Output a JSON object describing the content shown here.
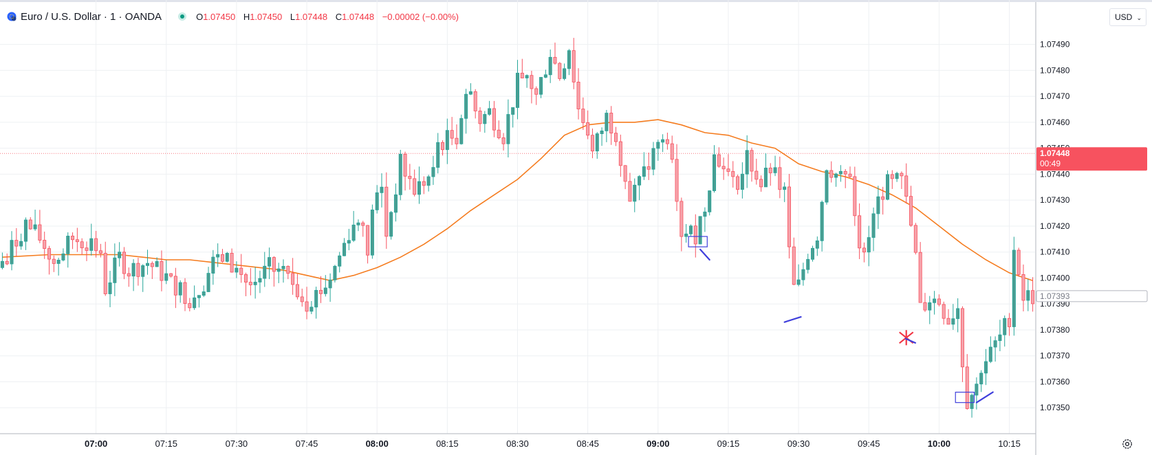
{
  "header": {
    "symbol": "Euro / U.S. Dollar · 1 · OANDA",
    "o_label": "O",
    "o_value": "1.07450",
    "h_label": "H",
    "h_value": "1.07450",
    "l_label": "L",
    "l_value": "1.07448",
    "c_label": "C",
    "c_value": "1.07448",
    "change": "−0.00002 (−0.00%)"
  },
  "currency_select": {
    "value": "USD"
  },
  "colors": {
    "up": "#26a69a",
    "down": "#f7525f",
    "up_fill": "#4a9d92",
    "down_fill": "#f6a2aa",
    "ma": "#f57c1f",
    "grid": "#eef0f3",
    "price_label": "#f7525f",
    "annotation": "#3f3fdc",
    "marker": "#f23645"
  },
  "chart_data": {
    "type": "candlestick",
    "title": "Euro / U.S. Dollar · 1 · OANDA",
    "y_ticks": [
      "1.07490",
      "1.07480",
      "1.07470",
      "1.07460",
      "1.07450",
      "1.07440",
      "1.07430",
      "1.07420",
      "1.07410",
      "1.07400",
      "1.07390",
      "1.07380",
      "1.07370",
      "1.07360",
      "1.07350"
    ],
    "x_ticks": [
      {
        "label": "07:00",
        "bold": true,
        "minute": 0
      },
      {
        "label": "07:15",
        "bold": false,
        "minute": 15
      },
      {
        "label": "07:30",
        "bold": false,
        "minute": 30
      },
      {
        "label": "07:45",
        "bold": false,
        "minute": 45
      },
      {
        "label": "08:00",
        "bold": true,
        "minute": 60
      },
      {
        "label": "08:15",
        "bold": false,
        "minute": 75
      },
      {
        "label": "08:30",
        "bold": false,
        "minute": 90
      },
      {
        "label": "08:45",
        "bold": false,
        "minute": 105
      },
      {
        "label": "09:00",
        "bold": true,
        "minute": 120
      },
      {
        "label": "09:15",
        "bold": false,
        "minute": 135
      },
      {
        "label": "09:30",
        "bold": false,
        "minute": 150
      },
      {
        "label": "09:45",
        "bold": false,
        "minute": 165
      },
      {
        "label": "10:00",
        "bold": true,
        "minute": 180
      },
      {
        "label": "10:15",
        "bold": false,
        "minute": 195
      }
    ],
    "y_range": [
      1.0734,
      1.07505
    ],
    "x_range_minutes": [
      -20.5,
      200.5
    ],
    "current_price": {
      "value": 1.07448,
      "label": "1.07448",
      "countdown": "00:49"
    },
    "secondary_price": {
      "value": 1.07393,
      "label": "1.07393"
    },
    "moving_average": [
      [
        -20,
        1.07408
      ],
      [
        -10,
        1.07409
      ],
      [
        0,
        1.07409
      ],
      [
        5,
        1.07409
      ],
      [
        10,
        1.07408
      ],
      [
        15,
        1.07407
      ],
      [
        20,
        1.07407
      ],
      [
        25,
        1.07406
      ],
      [
        30,
        1.07405
      ],
      [
        35,
        1.07404
      ],
      [
        40,
        1.07403
      ],
      [
        45,
        1.07401
      ],
      [
        50,
        1.07399
      ],
      [
        55,
        1.07401
      ],
      [
        60,
        1.07404
      ],
      [
        65,
        1.07408
      ],
      [
        70,
        1.07413
      ],
      [
        75,
        1.07419
      ],
      [
        80,
        1.07426
      ],
      [
        85,
        1.07432
      ],
      [
        90,
        1.07438
      ],
      [
        95,
        1.07446
      ],
      [
        100,
        1.07455
      ],
      [
        105,
        1.07459
      ],
      [
        110,
        1.0746
      ],
      [
        115,
        1.0746
      ],
      [
        120,
        1.07461
      ],
      [
        125,
        1.07459
      ],
      [
        130,
        1.07456
      ],
      [
        135,
        1.07455
      ],
      [
        140,
        1.07452
      ],
      [
        145,
        1.0745
      ],
      [
        150,
        1.07444
      ],
      [
        155,
        1.07441
      ],
      [
        160,
        1.07439
      ],
      [
        165,
        1.07436
      ],
      [
        170,
        1.07432
      ],
      [
        175,
        1.07427
      ],
      [
        180,
        1.0742
      ],
      [
        185,
        1.07413
      ],
      [
        190,
        1.07407
      ],
      [
        195,
        1.07402
      ],
      [
        200,
        1.07399
      ]
    ],
    "anchors": [
      [
        -20,
        1.07404
      ],
      [
        -16,
        1.07414
      ],
      [
        -14,
        1.07421
      ],
      [
        -11,
        1.07415
      ],
      [
        -8,
        1.07406
      ],
      [
        -4,
        1.07415
      ],
      [
        0,
        1.07414
      ],
      [
        2,
        1.07408
      ],
      [
        3,
        1.07396
      ],
      [
        6,
        1.07408
      ],
      [
        8,
        1.07403
      ],
      [
        12,
        1.07406
      ],
      [
        17,
        1.07399
      ],
      [
        21,
        1.07392
      ],
      [
        24,
        1.07398
      ],
      [
        27,
        1.0741
      ],
      [
        31,
        1.07403
      ],
      [
        34,
        1.07397
      ],
      [
        38,
        1.07404
      ],
      [
        42,
        1.074
      ],
      [
        46,
        1.07391
      ],
      [
        50,
        1.07397
      ],
      [
        52,
        1.07404
      ],
      [
        55,
        1.07418
      ],
      [
        58,
        1.07424
      ],
      [
        59,
        1.07406
      ],
      [
        60,
        1.07428
      ],
      [
        62,
        1.07434
      ],
      [
        63,
        1.07417
      ],
      [
        66,
        1.07444
      ],
      [
        69,
        1.07434
      ],
      [
        73,
        1.0744
      ],
      [
        74,
        1.07452
      ],
      [
        78,
        1.07455
      ],
      [
        80,
        1.07472
      ],
      [
        83,
        1.07461
      ],
      [
        85,
        1.07464
      ],
      [
        88,
        1.07455
      ],
      [
        91,
        1.07475
      ],
      [
        93,
        1.07478
      ],
      [
        95,
        1.0747
      ],
      [
        98,
        1.07487
      ],
      [
        100,
        1.07478
      ],
      [
        102,
        1.07489
      ],
      [
        104,
        1.07465
      ],
      [
        106,
        1.07457
      ],
      [
        107,
        1.07448
      ],
      [
        110,
        1.07462
      ],
      [
        112,
        1.07456
      ],
      [
        115,
        1.0743
      ],
      [
        117,
        1.07437
      ],
      [
        119,
        1.07444
      ],
      [
        121,
        1.0745
      ],
      [
        123,
        1.07455
      ],
      [
        124,
        1.07449
      ],
      [
        126,
        1.07418
      ],
      [
        129,
        1.07417
      ],
      [
        131,
        1.07428
      ],
      [
        133,
        1.07447
      ],
      [
        135,
        1.07443
      ],
      [
        137,
        1.07436
      ],
      [
        139,
        1.0744
      ],
      [
        140,
        1.07447
      ],
      [
        143,
        1.07436
      ],
      [
        145,
        1.07442
      ],
      [
        148,
        1.07432
      ],
      [
        149,
        1.0741
      ],
      [
        150,
        1.07396
      ],
      [
        151,
        1.07397
      ],
      [
        153,
        1.0741
      ],
      [
        155,
        1.07417
      ],
      [
        157,
        1.07444
      ],
      [
        160,
        1.07438
      ],
      [
        162,
        1.0744
      ],
      [
        164,
        1.07414
      ],
      [
        165,
        1.07407
      ],
      [
        167,
        1.07423
      ],
      [
        169,
        1.07436
      ],
      [
        171,
        1.07436
      ],
      [
        173,
        1.07438
      ],
      [
        175,
        1.0742
      ],
      [
        176,
        1.07408
      ],
      [
        177,
        1.07388
      ],
      [
        179,
        1.07392
      ],
      [
        181,
        1.07391
      ],
      [
        183,
        1.07384
      ],
      [
        185,
        1.07389
      ],
      [
        186,
        1.07368
      ],
      [
        187,
        1.07353
      ],
      [
        189,
        1.07358
      ],
      [
        190,
        1.07366
      ],
      [
        192,
        1.07371
      ],
      [
        194,
        1.07377
      ],
      [
        196,
        1.07385
      ],
      [
        197,
        1.07412
      ],
      [
        198,
        1.07403
      ],
      [
        199,
        1.07393
      ],
      [
        200,
        1.07393
      ]
    ],
    "annotations": [
      {
        "type": "box",
        "t0": 126.5,
        "t1": 130.5,
        "p_top": 1.07416,
        "p_bottom": 1.07412
      },
      {
        "type": "line",
        "t0": 129,
        "p0": 1.07411,
        "t1": 131,
        "p1": 1.07407
      },
      {
        "type": "line",
        "t0": 147,
        "p0": 1.07383,
        "t1": 150.5,
        "p1": 1.07385
      },
      {
        "type": "cross",
        "t": 173,
        "p": 1.07377
      },
      {
        "type": "box",
        "t0": 183.5,
        "t1": 187.5,
        "p_top": 1.07356,
        "p_bottom": 1.07352
      },
      {
        "type": "line",
        "t0": 188,
        "p0": 1.07352,
        "t1": 191.5,
        "p1": 1.07356
      }
    ]
  }
}
